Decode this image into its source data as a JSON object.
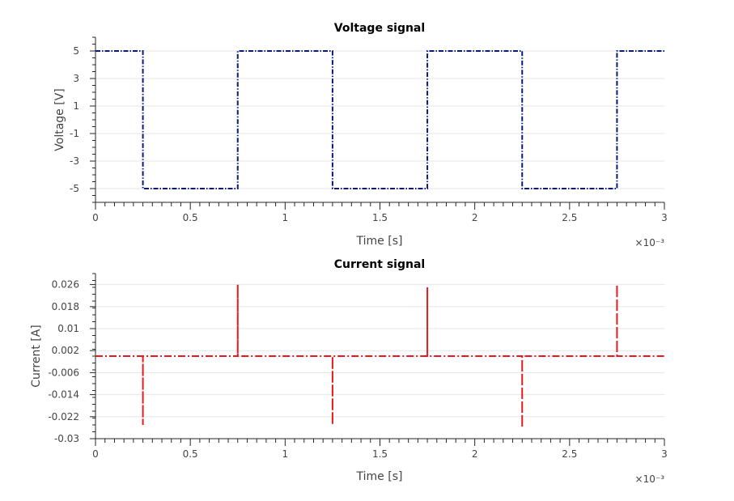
{
  "colors": {
    "background": "#ffffff",
    "axis": "#262626",
    "grid": "#e6e6e6",
    "text": "#444444",
    "voltage_series": "#0a1a7a",
    "current_series": "#e8191e"
  },
  "chart_data": [
    {
      "type": "line",
      "title": "Voltage signal",
      "xlabel": "Time [s]",
      "ylabel": "Voltage [V]",
      "x_exponent_label": "×10⁻³",
      "x_scale": 0.001,
      "xlim": [
        0,
        3
      ],
      "ylim": [
        -6,
        6
      ],
      "xticks": [
        0,
        0.5,
        1,
        1.5,
        2,
        2.5,
        3
      ],
      "xtick_labels": [
        "0",
        "0.5",
        "1",
        "1.5",
        "2",
        "2.5",
        "3"
      ],
      "yticks": [
        5,
        3,
        1,
        -1,
        -3,
        -5
      ],
      "ytick_labels": [
        "5",
        "3",
        "1",
        "-1",
        "-3",
        "-5"
      ],
      "grid": true,
      "line_style": "dash-dot",
      "series": [
        {
          "x": [
            0,
            0.25,
            0.25,
            0.75,
            0.75,
            1.25,
            1.25,
            1.75,
            1.75,
            2.25,
            2.25,
            2.75,
            2.75,
            3
          ],
          "y": [
            5,
            5,
            -5,
            -5,
            5,
            5,
            -5,
            -5,
            5,
            5,
            -5,
            -5,
            5,
            5
          ]
        }
      ]
    },
    {
      "type": "line",
      "title": "Current signal",
      "xlabel": "Time [s]",
      "ylabel": "Current [A]",
      "x_exponent_label": "×10⁻³",
      "x_scale": 0.001,
      "xlim": [
        0,
        3
      ],
      "ylim": [
        -0.03,
        0.03
      ],
      "xticks": [
        0,
        0.5,
        1,
        1.5,
        2,
        2.5,
        3
      ],
      "xtick_labels": [
        "0",
        "0.5",
        "1",
        "1.5",
        "2",
        "2.5",
        "3"
      ],
      "yticks": [
        0.026,
        0.018,
        0.01,
        0.002,
        -0.006,
        -0.014,
        -0.022,
        -0.03
      ],
      "ytick_labels": [
        "0.026",
        "0.018",
        "0.01",
        "0.002",
        "-0.006",
        "-0.014",
        "-0.022",
        "-0.03"
      ],
      "grid": true,
      "line_style": "dash-dot",
      "series": [
        {
          "x": [
            0,
            0.25,
            0.25,
            0.25,
            0.75,
            0.75,
            0.75,
            1.25,
            1.25,
            1.25,
            1.75,
            1.75,
            1.75,
            2.25,
            2.25,
            2.25,
            2.75,
            2.75,
            2.75,
            3
          ],
          "y": [
            0,
            0,
            -0.025,
            0,
            0,
            0.026,
            0,
            0,
            -0.025,
            0,
            0,
            0.025,
            0,
            0,
            -0.026,
            0,
            0,
            0.026,
            0,
            0
          ]
        }
      ]
    }
  ]
}
